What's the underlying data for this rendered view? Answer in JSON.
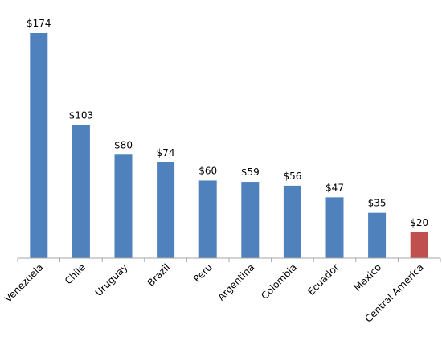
{
  "chart_data": {
    "type": "bar",
    "categories": [
      "Venezuela",
      "Chile",
      "Uruguay",
      "Brazil",
      "Peru",
      "Argentina",
      "Colombia",
      "Ecuador",
      "Mexico",
      "Central America"
    ],
    "values": [
      174,
      103,
      80,
      74,
      60,
      59,
      56,
      47,
      35,
      20
    ],
    "data_labels": [
      "$174",
      "$103",
      "$80",
      "$74",
      "$60",
      "$59",
      "$56",
      "$47",
      "$35",
      "$20"
    ],
    "colors": {
      "default": "#4f81bd",
      "highlight": "#c0504d",
      "axis": "#a6a6a6"
    },
    "highlight_categories": [
      "Central America"
    ],
    "ylim": [
      0,
      174
    ],
    "grid": false,
    "legend": "none"
  }
}
